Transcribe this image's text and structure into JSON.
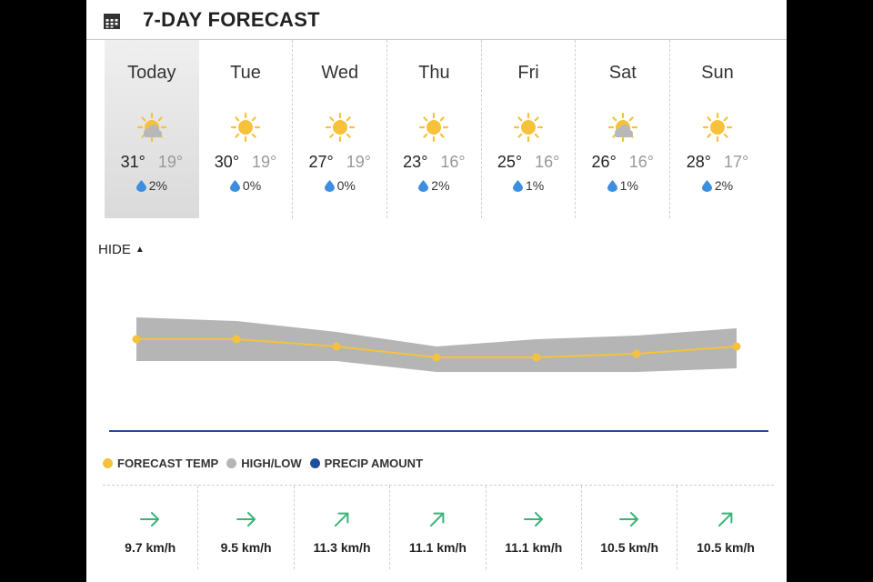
{
  "header": {
    "title": "7-DAY FORECAST",
    "icon": "calendar-icon"
  },
  "days": [
    {
      "name": "Today",
      "high": "31°",
      "low": "19°",
      "precip": "2%",
      "condition": "partly-cloudy",
      "selected": true
    },
    {
      "name": "Tue",
      "high": "30°",
      "low": "19°",
      "precip": "0%",
      "condition": "sunny"
    },
    {
      "name": "Wed",
      "high": "27°",
      "low": "19°",
      "precip": "0%",
      "condition": "sunny"
    },
    {
      "name": "Thu",
      "high": "23°",
      "low": "16°",
      "precip": "2%",
      "condition": "sunny"
    },
    {
      "name": "Fri",
      "high": "25°",
      "low": "16°",
      "precip": "1%",
      "condition": "sunny"
    },
    {
      "name": "Sat",
      "high": "26°",
      "low": "16°",
      "precip": "1%",
      "condition": "partly-cloudy"
    },
    {
      "name": "Sun",
      "high": "28°",
      "low": "17°",
      "precip": "2%",
      "condition": "sunny"
    }
  ],
  "toggle": {
    "label": "HIDE",
    "icon": "caret-up-icon"
  },
  "chart_data": {
    "type": "line",
    "categories": [
      "Today",
      "Tue",
      "Wed",
      "Thu",
      "Fri",
      "Sat",
      "Sun"
    ],
    "series": [
      {
        "name": "FORECAST TEMP",
        "values": [
          25,
          25,
          23,
          20,
          20,
          21,
          23
        ]
      },
      {
        "name": "HIGH/LOW",
        "high": [
          31,
          30,
          27,
          23,
          25,
          26,
          28
        ],
        "low": [
          19,
          19,
          19,
          16,
          16,
          16,
          17
        ]
      },
      {
        "name": "PRECIP AMOUNT",
        "values": [
          0,
          0,
          0,
          0,
          0,
          0,
          0
        ]
      }
    ],
    "colors": {
      "forecast": "#f6c23c",
      "highlow": "#b5b5b5",
      "precip": "#1f4e9c"
    }
  },
  "legend": [
    {
      "label": "FORECAST TEMP",
      "color": "#f6c23c"
    },
    {
      "label": "HIGH/LOW",
      "color": "#b5b5b5"
    },
    {
      "label": "PRECIP AMOUNT",
      "color": "#1f4e9c"
    }
  ],
  "wind": [
    {
      "speed": "9.7 km/h",
      "direction": "east",
      "angle": 0
    },
    {
      "speed": "9.5 km/h",
      "direction": "east",
      "angle": 0
    },
    {
      "speed": "11.3 km/h",
      "direction": "northeast",
      "angle": -45
    },
    {
      "speed": "11.1 km/h",
      "direction": "northeast",
      "angle": -45
    },
    {
      "speed": "11.1 km/h",
      "direction": "east",
      "angle": 0
    },
    {
      "speed": "10.5 km/h",
      "direction": "east",
      "angle": 0
    },
    {
      "speed": "10.5 km/h",
      "direction": "northeast",
      "angle": -45
    }
  ],
  "colors": {
    "sun": "#f6c23c",
    "cloud": "#b8b8b8",
    "drop": "#3c8fde",
    "wind": "#3bb27a"
  }
}
